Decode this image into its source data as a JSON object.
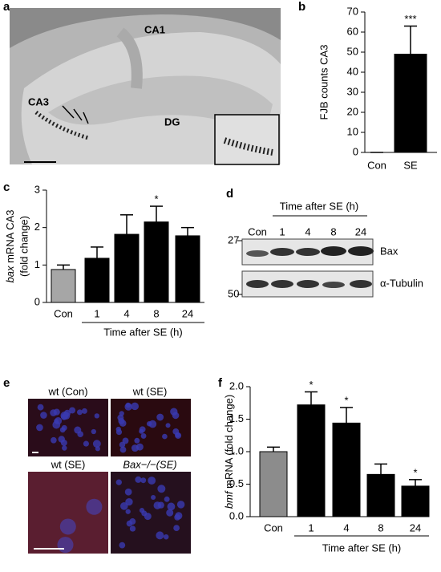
{
  "panels": {
    "a": "a",
    "b": "b",
    "c": "c",
    "d": "d",
    "e": "e",
    "f": "f"
  },
  "micrograph": {
    "labels": [
      "CA1",
      "CA3",
      "DG"
    ]
  },
  "blot": {
    "header": "Time after SE (h)",
    "lanes": [
      "Con",
      "1",
      "4",
      "8",
      "24"
    ],
    "markers": [
      "27",
      "50"
    ],
    "proteins": [
      "Bax",
      "α-Tubulin"
    ]
  },
  "staining": {
    "labels": [
      "wt (Con)",
      "wt (SE)",
      "wt (SE)",
      "Bax−/−(SE)"
    ]
  },
  "chart_data": [
    {
      "type": "bar",
      "ylabel": [
        "FJB counts CA3"
      ],
      "categories": [
        "Con",
        "SE"
      ],
      "values": [
        0,
        49
      ],
      "errors": [
        0,
        14
      ],
      "colors": [
        "#000000",
        "#000000"
      ],
      "significance": [
        null,
        "***"
      ],
      "ylim": [
        0,
        70
      ],
      "yticks": [
        0,
        10,
        20,
        30,
        40,
        50,
        60,
        70
      ]
    },
    {
      "type": "bar",
      "ylabel": [
        "bax mRNA CA3",
        "(fold change)"
      ],
      "xlabel": "Time after SE (h)",
      "categories": [
        "Con",
        "1",
        "4",
        "8",
        "24"
      ],
      "values": [
        0.88,
        1.18,
        1.82,
        2.15,
        1.78
      ],
      "errors": [
        0.12,
        0.3,
        0.52,
        0.42,
        0.22
      ],
      "colors": [
        "#a6a6a6",
        "#000000",
        "#000000",
        "#000000",
        "#000000"
      ],
      "significance": [
        null,
        null,
        null,
        "*",
        null
      ],
      "ylim": [
        0,
        3
      ],
      "yticks": [
        0,
        1,
        2,
        3
      ]
    },
    {
      "type": "bar",
      "ylabel": [
        "bmf mRNA (fold change)"
      ],
      "xlabel": "Time after SE (h)",
      "categories": [
        "Con",
        "1",
        "4",
        "8",
        "24"
      ],
      "values": [
        1.0,
        1.72,
        1.44,
        0.65,
        0.47
      ],
      "errors": [
        0.07,
        0.2,
        0.24,
        0.16,
        0.1
      ],
      "colors": [
        "#8c8c8c",
        "#000000",
        "#000000",
        "#000000",
        "#000000"
      ],
      "significance": [
        null,
        "*",
        "*",
        null,
        "*"
      ],
      "ylim": [
        0,
        2
      ],
      "yticks": [
        {
          "value": 0,
          "label": "0.0"
        },
        0.5,
        {
          "value": 1,
          "label": "1.0"
        },
        1.5,
        {
          "value": 2,
          "label": "2.0"
        }
      ]
    }
  ]
}
